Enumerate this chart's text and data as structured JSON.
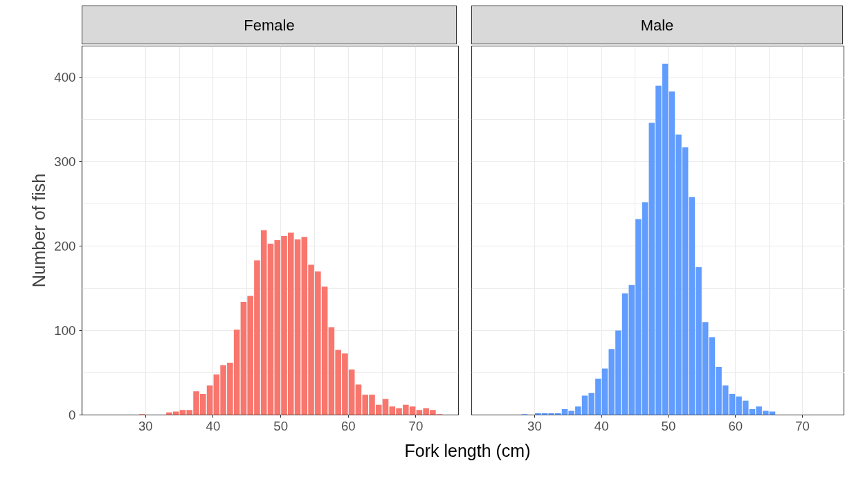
{
  "chart_data": [
    {
      "type": "histogram",
      "title": "Female",
      "xlabel": "Fork length (cm)",
      "ylabel": "Number of fish",
      "color": "#f8766d",
      "bins": [
        29,
        30,
        31,
        32,
        33,
        34,
        35,
        36,
        37,
        38,
        39,
        40,
        41,
        42,
        43,
        44,
        45,
        46,
        47,
        48,
        49,
        50,
        51,
        52,
        53,
        54,
        55,
        56,
        57,
        58,
        59,
        60,
        61,
        62,
        63,
        64,
        65,
        66,
        67,
        68,
        69,
        70,
        71,
        72,
        73,
        74
      ],
      "values": [
        1,
        0,
        0,
        0,
        3,
        4,
        6,
        6,
        28,
        25,
        35,
        48,
        59,
        62,
        101,
        134,
        141,
        183,
        219,
        203,
        207,
        212,
        216,
        208,
        211,
        178,
        170,
        152,
        104,
        77,
        73,
        54,
        36,
        24,
        24,
        12,
        19,
        10,
        8,
        12,
        10,
        6,
        8,
        6,
        1
      ],
      "xlim": [
        20.6,
        76.3
      ],
      "xticks": [
        30,
        40,
        50,
        60,
        70
      ],
      "ylim": [
        0,
        437
      ],
      "yticks": [
        0,
        100,
        200,
        300,
        400
      ],
      "grid": true
    },
    {
      "type": "histogram",
      "title": "Male",
      "color": "#619cff",
      "bins": [
        28,
        29,
        30,
        31,
        32,
        33,
        34,
        35,
        36,
        37,
        38,
        39,
        40,
        41,
        42,
        43,
        44,
        45,
        46,
        47,
        48,
        49,
        50,
        51,
        52,
        53,
        54,
        55,
        56,
        57,
        58,
        59,
        60,
        61,
        62,
        63,
        64,
        65,
        66
      ],
      "values": [
        1,
        0,
        2,
        2,
        2,
        2,
        7,
        5,
        10,
        23,
        26,
        43,
        55,
        78,
        100,
        144,
        154,
        232,
        252,
        346,
        390,
        416,
        383,
        332,
        317,
        258,
        175,
        110,
        92,
        57,
        35,
        25,
        22,
        17,
        7,
        10,
        5,
        4
      ],
      "xlim": [
        20.6,
        76.3
      ],
      "xticks": [
        30,
        40,
        50,
        60,
        70
      ],
      "ylim": [
        0,
        437
      ],
      "yticks": [
        0,
        100,
        200,
        300,
        400
      ],
      "grid": true,
      "tick_labels": "x"
    }
  ]
}
